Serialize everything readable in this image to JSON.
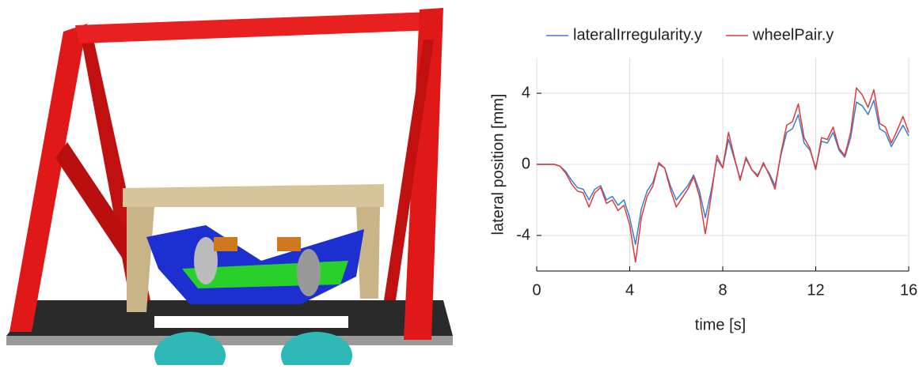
{
  "chart_data": {
    "type": "line",
    "xlabel": "time [s]",
    "ylabel": "lateral position [mm]",
    "x": [
      0,
      0.25,
      0.5,
      0.75,
      1,
      1.25,
      1.5,
      1.75,
      2,
      2.25,
      2.5,
      2.75,
      3,
      3.25,
      3.5,
      3.75,
      4,
      4.25,
      4.5,
      4.75,
      5,
      5.25,
      5.5,
      5.75,
      6,
      6.25,
      6.5,
      6.75,
      7,
      7.25,
      7.5,
      7.75,
      8,
      8.25,
      8.5,
      8.75,
      9,
      9.25,
      9.5,
      9.75,
      10,
      10.25,
      10.5,
      10.75,
      11,
      11.25,
      11.5,
      11.75,
      12,
      12.25,
      12.5,
      12.75,
      13,
      13.25,
      13.5,
      13.75,
      14,
      14.25,
      14.5,
      14.75,
      15,
      15.25,
      15.5,
      15.75,
      16
    ],
    "series": [
      {
        "name": "lateralIrregularity.y",
        "color": "#3a7fd0",
        "values": [
          0,
          0,
          0,
          0,
          -0.1,
          -0.4,
          -0.9,
          -1.3,
          -1.4,
          -2.0,
          -1.4,
          -1.2,
          -2.0,
          -1.8,
          -2.3,
          -2.0,
          -3.0,
          -4.5,
          -2.5,
          -1.5,
          -1.0,
          0.0,
          -0.2,
          -1.2,
          -2.0,
          -1.6,
          -1.2,
          -0.6,
          -1.5,
          -3.0,
          -1.5,
          0.3,
          -0.2,
          1.4,
          0.3,
          -0.8,
          0.3,
          -0.3,
          -0.6,
          0.0,
          -0.5,
          -1.2,
          0.5,
          1.8,
          2.0,
          2.8,
          1.2,
          0.8,
          -0.2,
          1.3,
          1.2,
          1.8,
          0.8,
          0.4,
          1.5,
          3.5,
          3.3,
          2.8,
          3.6,
          2.0,
          1.8,
          1.0,
          1.6,
          2.2,
          1.6
        ]
      },
      {
        "name": "wheelPair.y",
        "color": "#e03a3a",
        "values": [
          0,
          0,
          0,
          0,
          -0.1,
          -0.5,
          -1.1,
          -1.5,
          -1.6,
          -2.4,
          -1.6,
          -1.3,
          -2.2,
          -2.0,
          -2.6,
          -2.3,
          -3.4,
          -5.5,
          -3.0,
          -1.8,
          -1.2,
          0.1,
          -0.2,
          -1.4,
          -2.4,
          -1.9,
          -1.4,
          -0.7,
          -1.8,
          -3.9,
          -1.8,
          0.5,
          -0.2,
          1.8,
          0.4,
          -0.9,
          0.4,
          -0.3,
          -0.7,
          0.1,
          -0.6,
          -1.4,
          0.6,
          2.2,
          2.4,
          3.4,
          1.5,
          0.9,
          -0.3,
          1.5,
          1.4,
          2.1,
          0.9,
          0.5,
          1.8,
          4.3,
          3.9,
          3.2,
          4.2,
          2.3,
          2.1,
          1.2,
          1.9,
          2.7,
          1.8
        ]
      }
    ],
    "xlim": [
      0,
      16
    ],
    "xticks": [
      0,
      4,
      8,
      12,
      16
    ],
    "ylim": [
      -6,
      6
    ],
    "yticks": [
      -4,
      0,
      4
    ],
    "grid": true,
    "legend": "top"
  }
}
